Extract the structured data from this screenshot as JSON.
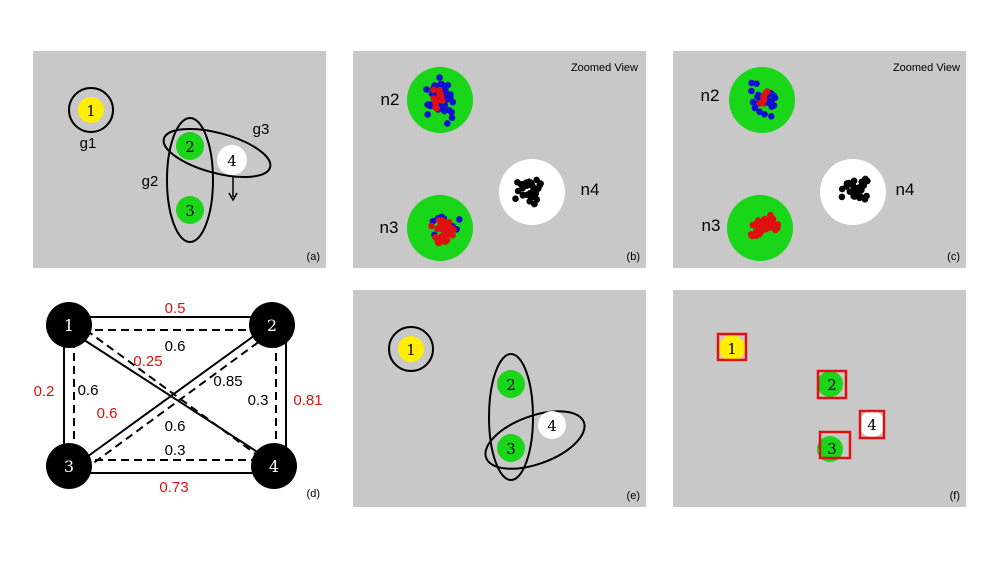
{
  "panels": {
    "a": {
      "label": "(a)",
      "nodes": [
        "1",
        "2",
        "3",
        "4"
      ],
      "groups": [
        "g1",
        "g2",
        "g3"
      ]
    },
    "b": {
      "label": "(b)",
      "title": "Zoomed View",
      "clusters": [
        "n2",
        "n3",
        "n4"
      ]
    },
    "c": {
      "label": "(c)",
      "title": "Zoomed View",
      "clusters": [
        "n2",
        "n3",
        "n4"
      ]
    },
    "d": {
      "label": "(d)",
      "nodes": [
        "1",
        "2",
        "3",
        "4"
      ],
      "weights_red": [
        "0.5",
        "0.25",
        "0.2",
        "0.6",
        "0.81",
        "0.73"
      ],
      "weights_black": [
        "0.6",
        "0.6",
        "0.85",
        "0.3",
        "0.6",
        "0.3"
      ]
    },
    "e": {
      "label": "(e)",
      "nodes": [
        "1",
        "2",
        "3",
        "4"
      ]
    },
    "f": {
      "label": "(f)",
      "nodes": [
        "1",
        "2",
        "3",
        "4"
      ]
    }
  },
  "colors": {
    "panel_bg": "#c8c8c8",
    "yellow": "#ffee00",
    "green": "#19d619",
    "white": "#ffffff",
    "red": "#e01010",
    "blue": "#1010d0",
    "black": "#000000"
  }
}
